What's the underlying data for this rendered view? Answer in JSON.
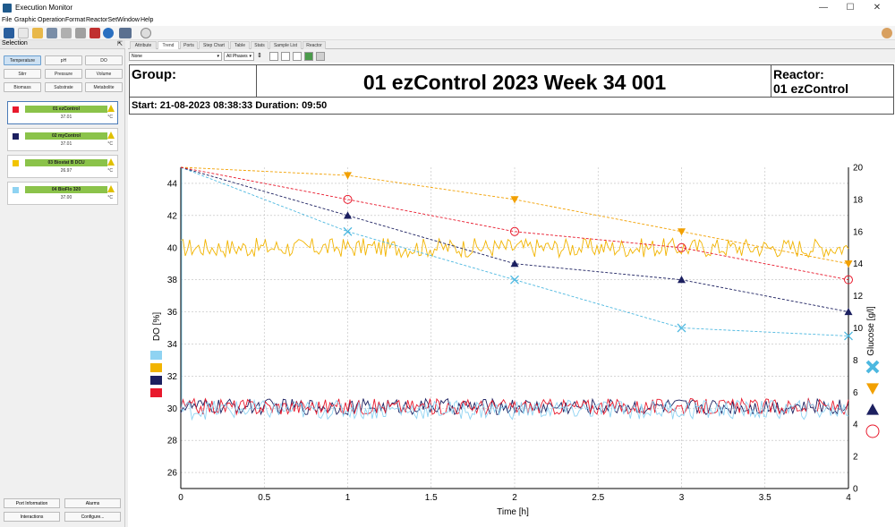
{
  "window": {
    "title": "Execution Monitor",
    "controls": [
      "—",
      "☐",
      "✕"
    ]
  },
  "menu": [
    "File",
    "Graphic",
    "Operation",
    "Format",
    "ReactorSet",
    "Window",
    "Help"
  ],
  "selection": {
    "title": "Selection",
    "buttons": [
      "Temperature",
      "pH",
      "DO",
      "Stirr",
      "Pressure",
      "Volume",
      "Biomass",
      "Substrate",
      "Metabolite"
    ],
    "active": 0
  },
  "reactors": [
    {
      "name": "01 ezControl",
      "value": "37.01",
      "unit": "°C",
      "color": "#e8192c"
    },
    {
      "name": "02 myControl",
      "value": "37.01",
      "unit": "°C",
      "color": "#1c2060"
    },
    {
      "name": "03 Biostat B DCU",
      "value": "26.97",
      "unit": "°C",
      "color": "#f2c400"
    },
    {
      "name": "04 BioFlo 320",
      "value": "37.00",
      "unit": "°C",
      "color": "#8fd3f2"
    }
  ],
  "bottom_buttons": [
    "Port Information",
    "Alarms",
    "Interactions",
    "Configure..."
  ],
  "tabs": [
    "Attribute",
    "Trend",
    "Ports",
    "Step Chart",
    "Table",
    "Stats",
    "Sample List",
    "Reactor"
  ],
  "active_tab": 1,
  "subtool": {
    "filter_value": "None",
    "phase_value": "All Phases"
  },
  "header": {
    "group_label": "Group:",
    "main_title": "01 ezControl 2023 Week 34 001",
    "reactor_label": "Reactor:",
    "reactor_value": "01 ezControl",
    "start_info": "Start: 21-08-2023 08:38:33 Duration: 09:50"
  },
  "chart_data": {
    "type": "line",
    "xlabel": "Time [h]",
    "ylabel_left": "DO  [%]",
    "ylabel_right": "Glucose [g/l]",
    "xlim": [
      0,
      4
    ],
    "ylim_left": [
      25,
      45
    ],
    "ylim_right": [
      0,
      20
    ],
    "x_ticks": [
      "0",
      "0.5",
      "1",
      "1.5",
      "2",
      "2.5",
      "3",
      "3.5",
      "4"
    ],
    "y_left_ticks": [
      "26",
      "28",
      "30",
      "32",
      "34",
      "36",
      "38",
      "40",
      "42",
      "44"
    ],
    "y_right_ticks": [
      "0",
      "2",
      "4",
      "6",
      "8",
      "10",
      "12",
      "14",
      "16",
      "18",
      "20"
    ],
    "grid": true,
    "do_series": [
      {
        "color": "#f2b400",
        "mean": 40,
        "amp": 0.6
      },
      {
        "color": "#1c2060",
        "mean": 30.1,
        "amp": 0.5
      },
      {
        "color": "#e8192c",
        "mean": 30.1,
        "amp": 0.5
      },
      {
        "color": "#8fd3f2",
        "mean": 29.9,
        "amp": 0.6
      }
    ],
    "glucose_series": [
      {
        "marker": "cross",
        "color": "#4db8e0",
        "x": [
          0,
          1,
          2,
          3,
          4
        ],
        "y": [
          20,
          16,
          13,
          10,
          9.5
        ]
      },
      {
        "marker": "triangle-down",
        "color": "#f2a000",
        "x": [
          0,
          1,
          2,
          3,
          4
        ],
        "y": [
          20,
          19.5,
          18,
          16,
          14
        ]
      },
      {
        "marker": "triangle-up",
        "color": "#1c2060",
        "x": [
          0,
          1,
          2,
          3,
          4
        ],
        "y": [
          20,
          17,
          14,
          13,
          11
        ]
      },
      {
        "marker": "circle",
        "color": "#e8192c",
        "x": [
          0,
          1,
          2,
          3,
          4
        ],
        "y": [
          20,
          18,
          16,
          15,
          13
        ]
      }
    ],
    "legend_left_colors": [
      "#8fd3f2",
      "#f2b400",
      "#1c2060",
      "#e8192c"
    ]
  }
}
